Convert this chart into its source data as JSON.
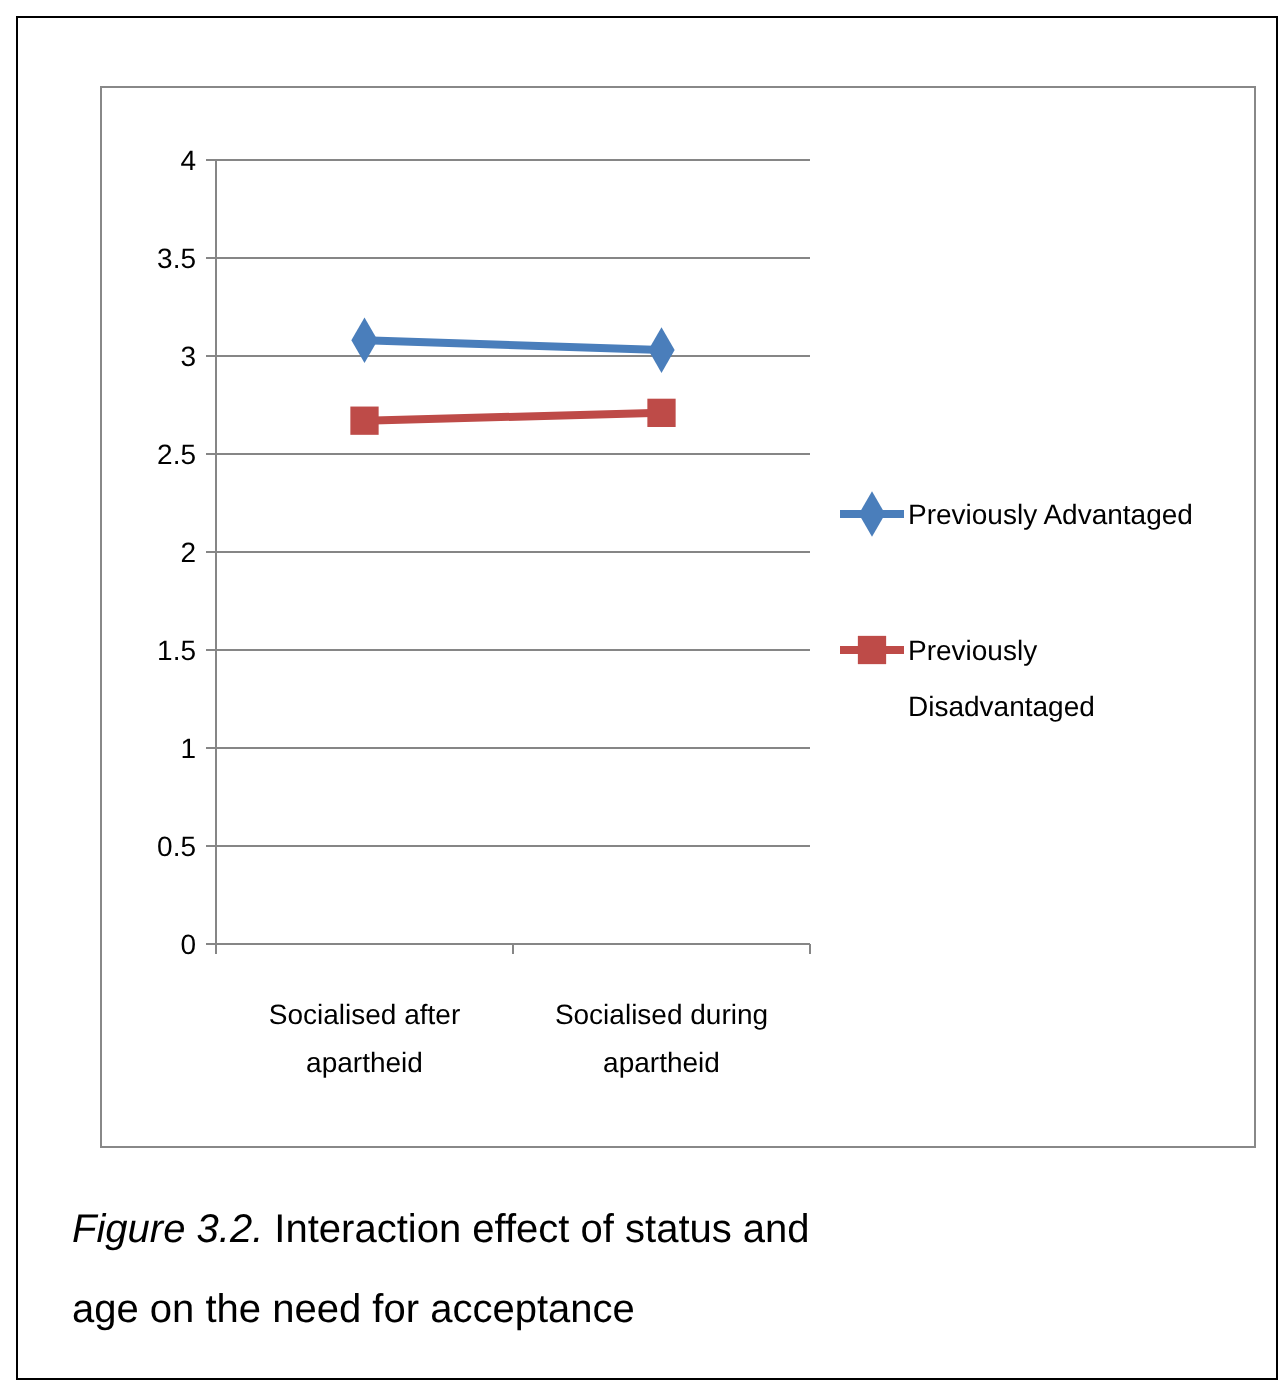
{
  "chart_data": {
    "type": "line",
    "categories": [
      "Socialised after apartheid",
      "Socialised during apartheid"
    ],
    "series": [
      {
        "name": "Previously Advantaged",
        "color": "#4a7ebb",
        "values": [
          3.08,
          3.03
        ],
        "marker": "diamond"
      },
      {
        "name": "Previously Disadvantaged",
        "color": "#be4b48",
        "values": [
          2.67,
          2.71
        ],
        "marker": "square"
      }
    ],
    "ylim": [
      0,
      4
    ],
    "yticks": [
      0,
      {
        "value": 0.5,
        "label": "0.5"
      },
      1,
      {
        "value": 1.5,
        "label": "1.5"
      },
      2,
      {
        "value": 2.5,
        "label": "2.5"
      },
      3,
      {
        "value": 3.5,
        "label": "3.5"
      },
      4
    ],
    "grid": "y",
    "legend": "right",
    "line_style": "solid",
    "annotations": [
      "Figure 3.2.",
      "Interaction effect of status and age on the need for acceptance"
    ]
  }
}
